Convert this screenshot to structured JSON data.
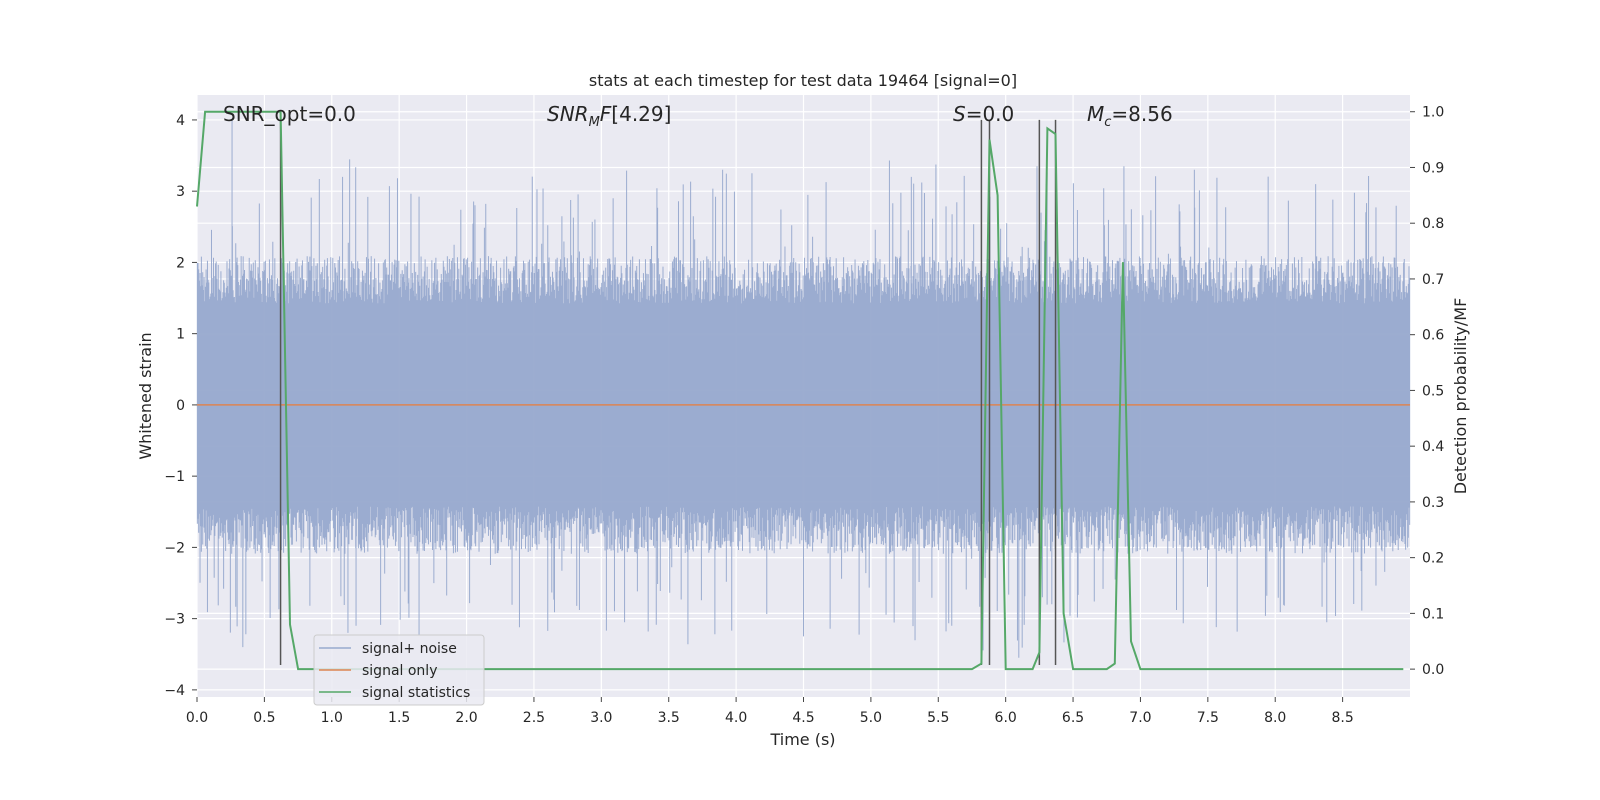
{
  "chart_data": {
    "type": "line",
    "title": "stats at each timestep for test data 19464 [signal=0]",
    "xlabel": "Time (s)",
    "ylabel_left": "Whitened strain",
    "ylabel_right": "Detection probability/MF",
    "xlim": [
      0,
      9.0
    ],
    "ylim_left": [
      -4.1,
      4.35
    ],
    "ylim_right": [
      -0.05,
      1.03
    ],
    "x_ticks": [
      0.0,
      0.5,
      1.0,
      1.5,
      2.0,
      2.5,
      3.0,
      3.5,
      4.0,
      4.5,
      5.0,
      5.5,
      6.0,
      6.5,
      7.0,
      7.5,
      8.0,
      8.5
    ],
    "x_tick_labels": [
      "0.0",
      "0.5",
      "1.0",
      "1.5",
      "2.0",
      "2.5",
      "3.0",
      "3.5",
      "4.0",
      "4.5",
      "5.0",
      "5.5",
      "6.0",
      "6.5",
      "7.0",
      "7.5",
      "8.0",
      "8.5"
    ],
    "y_left_ticks": [
      -4,
      -3,
      -2,
      -1,
      0,
      1,
      2,
      3,
      4
    ],
    "y_left_tick_labels": [
      "−4",
      "−3",
      "−2",
      "−1",
      "0",
      "1",
      "2",
      "3",
      "4"
    ],
    "y_right_ticks": [
      0.0,
      0.1,
      0.2,
      0.3,
      0.4,
      0.5,
      0.6,
      0.7,
      0.8,
      0.9,
      1.0
    ],
    "y_right_tick_labels": [
      "0.0",
      "0.1",
      "0.2",
      "0.3",
      "0.4",
      "0.5",
      "0.6",
      "0.7",
      "0.8",
      "0.9",
      "1.0"
    ],
    "grid": true,
    "legend_position": "lower-left",
    "annotations": {
      "snr_opt": "SNR_opt=0.0",
      "snr_mf": "[4.29]",
      "s_value": "=0.0",
      "mc_value": "=8.56"
    },
    "series": [
      {
        "name": "signal+ noise",
        "color": "#97a9ce",
        "axis": "left",
        "style": "dense noise fill",
        "envelope_upper_typical": 1.9,
        "envelope_lower_typical": -1.9,
        "max_peak": 4.0,
        "min_peak": -3.4,
        "notable_peaks": [
          {
            "x": 0.26,
            "y": 4.0
          },
          {
            "x": 0.34,
            "y": -3.4
          },
          {
            "x": 1.08,
            "y": 3.2
          },
          {
            "x": 1.12,
            "y": -3.2
          },
          {
            "x": 1.18,
            "y": -3.1
          },
          {
            "x": 3.9,
            "y": 3.3
          },
          {
            "x": 4.5,
            "y": -3.25
          },
          {
            "x": 5.3,
            "y": 3.2
          },
          {
            "x": 5.6,
            "y": -3.1
          },
          {
            "x": 6.3,
            "y": 3.1
          },
          {
            "x": 7.4,
            "y": 3.3
          },
          {
            "x": 8.3,
            "y": 3.1
          }
        ]
      },
      {
        "name": "signal only",
        "color": "#dd8452",
        "axis": "left",
        "x": [
          0,
          9.0
        ],
        "y": [
          0,
          0
        ]
      },
      {
        "name": "signal statistics",
        "color": "#55a868",
        "axis": "right",
        "x": [
          0.0,
          0.06,
          0.12,
          0.2,
          0.3,
          0.4,
          0.5,
          0.56,
          0.62,
          0.69,
          0.75,
          0.8,
          1.0,
          2.0,
          3.0,
          4.0,
          5.0,
          5.5,
          5.75,
          5.82,
          5.88,
          5.94,
          6.0,
          6.12,
          6.2,
          6.25,
          6.31,
          6.37,
          6.43,
          6.5,
          6.6,
          6.75,
          6.81,
          6.87,
          6.93,
          7.0,
          7.2,
          8.0,
          8.95
        ],
        "y": [
          0.83,
          1.0,
          1.0,
          1.0,
          1.0,
          1.0,
          1.0,
          1.0,
          1.0,
          0.08,
          0.0,
          0.0,
          0.0,
          0.0,
          0.0,
          0.0,
          0.0,
          0.0,
          0.0,
          0.01,
          0.95,
          0.85,
          0.0,
          0.0,
          0.0,
          0.03,
          0.97,
          0.96,
          0.1,
          0.0,
          0.0,
          0.0,
          0.01,
          0.73,
          0.05,
          0.0,
          0.0,
          0.0,
          0.0
        ]
      }
    ],
    "vertical_markers": {
      "color": "#555555",
      "x": [
        0.62,
        5.82,
        5.88,
        6.25,
        6.37
      ],
      "y_bottom": -3.65,
      "y_top": 4.0
    }
  }
}
